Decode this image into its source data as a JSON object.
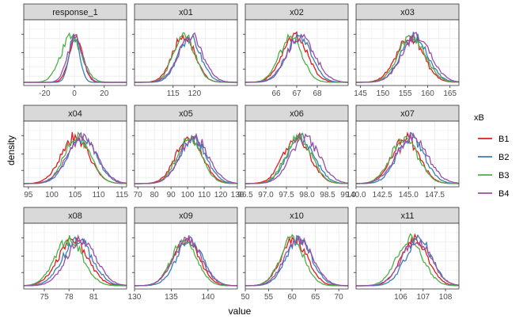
{
  "chart_data": {
    "type": "line",
    "chart_kind": "faceted density curves",
    "xlabel": "value",
    "ylabel": "density",
    "legend": {
      "title": "xB",
      "placement": "right",
      "entries": [
        {
          "name": "B1",
          "color": "#e41a1c"
        },
        {
          "name": "B2",
          "color": "#377eb8"
        },
        {
          "name": "B3",
          "color": "#4daf4a"
        },
        {
          "name": "B4",
          "color": "#984ea3"
        }
      ]
    },
    "grid": true,
    "facets": [
      {
        "label": "response_1",
        "xlim": [
          -34,
          35
        ],
        "ticks": [
          -20,
          0,
          20
        ],
        "tick_labels": [
          "-20",
          "0",
          "20"
        ],
        "series": [
          {
            "name": "B1",
            "mean": 1,
            "sd": 4.5
          },
          {
            "name": "B2",
            "mean": 0,
            "sd": 3.5
          },
          {
            "name": "B3",
            "mean": -2,
            "sd": 7
          },
          {
            "name": "B4",
            "mean": 0.5,
            "sd": 5
          }
        ]
      },
      {
        "label": "x01",
        "xlim": [
          106,
          130
        ],
        "ticks": [
          115,
          120
        ],
        "tick_labels": [
          "115",
          "120"
        ],
        "series": [
          {
            "name": "B1",
            "mean": 117.5,
            "sd": 2.6
          },
          {
            "name": "B2",
            "mean": 118.8,
            "sd": 2.6
          },
          {
            "name": "B3",
            "mean": 117.6,
            "sd": 2.5
          },
          {
            "name": "B4",
            "mean": 119.0,
            "sd": 2.9
          }
        ]
      },
      {
        "label": "x02",
        "xlim": [
          64.5,
          69.5
        ],
        "ticks": [
          66,
          67,
          68
        ],
        "tick_labels": [
          "66",
          "67",
          "68"
        ],
        "series": [
          {
            "name": "B1",
            "mean": 66.9,
            "sd": 0.62
          },
          {
            "name": "B2",
            "mean": 67.1,
            "sd": 0.6
          },
          {
            "name": "B3",
            "mean": 66.7,
            "sd": 0.55
          },
          {
            "name": "B4",
            "mean": 67.2,
            "sd": 0.68
          }
        ]
      },
      {
        "label": "x03",
        "xlim": [
          144,
          167
        ],
        "ticks": [
          145,
          150,
          155,
          160,
          165
        ],
        "tick_labels": [
          "145",
          "150",
          "155",
          "160",
          "165"
        ],
        "series": [
          {
            "name": "B1",
            "mean": 156,
            "sd": 3
          },
          {
            "name": "B2",
            "mean": 157,
            "sd": 3
          },
          {
            "name": "B3",
            "mean": 156.5,
            "sd": 3
          },
          {
            "name": "B4",
            "mean": 157.5,
            "sd": 3.2
          }
        ]
      },
      {
        "label": "x04",
        "xlim": [
          94,
          116
        ],
        "ticks": [
          95,
          100,
          105,
          110,
          115
        ],
        "tick_labels": [
          "95",
          "100",
          "105",
          "110",
          "115"
        ],
        "series": [
          {
            "name": "B1",
            "mean": 105,
            "sd": 3
          },
          {
            "name": "B2",
            "mean": 106.5,
            "sd": 3
          },
          {
            "name": "B3",
            "mean": 105.5,
            "sd": 2.8
          },
          {
            "name": "B4",
            "mean": 106.5,
            "sd": 3.2
          }
        ]
      },
      {
        "label": "x05",
        "xlim": [
          68,
          130
        ],
        "ticks": [
          70,
          80,
          90,
          100,
          110,
          120,
          130
        ],
        "tick_labels": [
          "70",
          "80",
          "90",
          "100",
          "110",
          "120",
          "130"
        ],
        "series": [
          {
            "name": "B1",
            "mean": 101,
            "sd": 8
          },
          {
            "name": "B2",
            "mean": 103,
            "sd": 8
          },
          {
            "name": "B3",
            "mean": 101,
            "sd": 7.5
          },
          {
            "name": "B4",
            "mean": 104,
            "sd": 8.5
          }
        ]
      },
      {
        "label": "x06",
        "xlim": [
          96.5,
          99
        ],
        "ticks": [
          96.5,
          97.0,
          97.5,
          98.0,
          98.5,
          99.0
        ],
        "tick_labels": [
          "96.5",
          "97.0",
          "97.5",
          "98.0",
          "98.5",
          "99.0"
        ],
        "series": [
          {
            "name": "B1",
            "mean": 97.75,
            "sd": 0.33
          },
          {
            "name": "B2",
            "mean": 97.85,
            "sd": 0.33
          },
          {
            "name": "B3",
            "mean": 97.8,
            "sd": 0.32
          },
          {
            "name": "B4",
            "mean": 97.95,
            "sd": 0.35
          }
        ]
      },
      {
        "label": "x07",
        "xlim": [
          140,
          149.8
        ],
        "ticks": [
          140.0,
          142.5,
          145.0,
          147.5
        ],
        "tick_labels": [
          "140.0",
          "142.5",
          "145.0",
          "147.5"
        ],
        "series": [
          {
            "name": "B1",
            "mean": 144.7,
            "sd": 1.3
          },
          {
            "name": "B2",
            "mean": 145.2,
            "sd": 1.3
          },
          {
            "name": "B3",
            "mean": 144.6,
            "sd": 1.3
          },
          {
            "name": "B4",
            "mean": 145.3,
            "sd": 1.5
          }
        ]
      },
      {
        "label": "x08",
        "xlim": [
          72.5,
          85
        ],
        "ticks": [
          75,
          78,
          81
        ],
        "tick_labels": [
          "75",
          "78",
          "81"
        ],
        "series": [
          {
            "name": "B1",
            "mean": 78.5,
            "sd": 1.8
          },
          {
            "name": "B2",
            "mean": 79,
            "sd": 1.8
          },
          {
            "name": "B3",
            "mean": 78,
            "sd": 1.7
          },
          {
            "name": "B4",
            "mean": 79.5,
            "sd": 1.8
          }
        ]
      },
      {
        "label": "x09",
        "xlim": [
          130,
          144
        ],
        "ticks": [
          130,
          135,
          140
        ],
        "tick_labels": [
          "130",
          "135",
          "140"
        ],
        "series": [
          {
            "name": "B1",
            "mean": 137,
            "sd": 1.8
          },
          {
            "name": "B2",
            "mean": 137.5,
            "sd": 1.8
          },
          {
            "name": "B3",
            "mean": 136.8,
            "sd": 1.7
          },
          {
            "name": "B4",
            "mean": 137.2,
            "sd": 1.9
          }
        ]
      },
      {
        "label": "x10",
        "xlim": [
          50,
          72
        ],
        "ticks": [
          50,
          55,
          60,
          65,
          70
        ],
        "tick_labels": [
          "50",
          "55",
          "60",
          "65",
          "70"
        ],
        "series": [
          {
            "name": "B1",
            "mean": 60.5,
            "sd": 2.8
          },
          {
            "name": "B2",
            "mean": 61.5,
            "sd": 2.8
          },
          {
            "name": "B3",
            "mean": 60,
            "sd": 2.6
          },
          {
            "name": "B4",
            "mean": 61.5,
            "sd": 3
          }
        ]
      },
      {
        "label": "x11",
        "xlim": [
          104,
          108.6
        ],
        "ticks": [
          106,
          107,
          108
        ],
        "tick_labels": [
          "106",
          "107",
          "108"
        ],
        "series": [
          {
            "name": "B1",
            "mean": 106.6,
            "sd": 0.6
          },
          {
            "name": "B2",
            "mean": 106.8,
            "sd": 0.6
          },
          {
            "name": "B3",
            "mean": 106.4,
            "sd": 0.6
          },
          {
            "name": "B4",
            "mean": 106.7,
            "sd": 0.65
          }
        ]
      }
    ]
  }
}
